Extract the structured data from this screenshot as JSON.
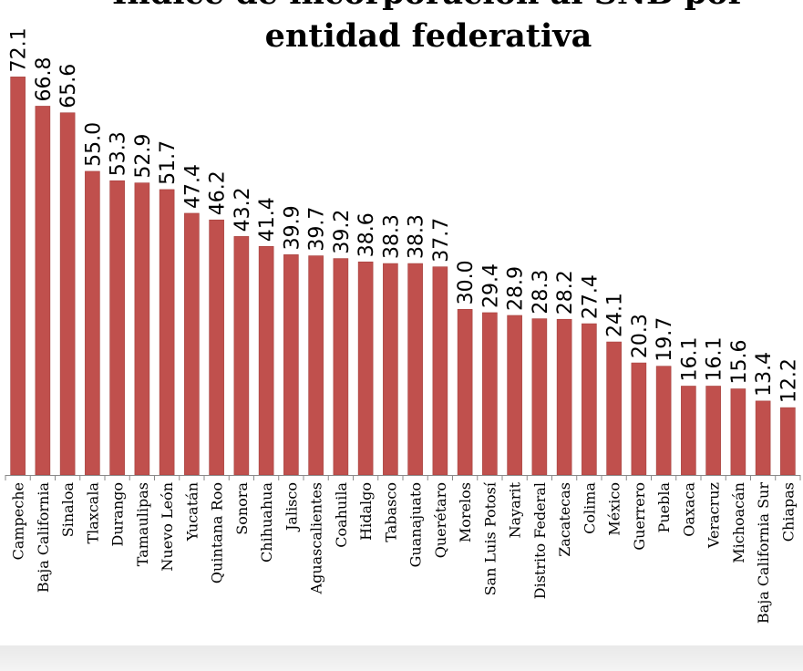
{
  "chart_data": {
    "type": "bar",
    "title": "Índice de incorporación al SNB por entidad federativa",
    "title_lines": [
      "Índice de incorporación al SNB por",
      "entidad federativa"
    ],
    "xlabel": "",
    "ylabel": "",
    "ylim": [
      0,
      80
    ],
    "grid": false,
    "bar_color": "#c0504d",
    "categories": [
      "Campeche",
      "Baja California",
      "Sinaloa",
      "Tlaxcala",
      "Durango",
      "Tamaulipas",
      "Nuevo León",
      "Yucatán",
      "Quintana Roo",
      "Sonora",
      "Chihuahua",
      "Jalisco",
      "Aguascalientes",
      "Coahuila",
      "Hidalgo",
      "Tabasco",
      "Guanajuato",
      "Querétaro",
      "Morelos",
      "San Luis Potosí",
      "Nayarit",
      "Distrito Federal",
      "Zacatecas",
      "Colima",
      "México",
      "Guerrero",
      "Puebla",
      "Oaxaca",
      "Veracruz",
      "Michoacán",
      "Baja California Sur",
      "Chiapas"
    ],
    "values": [
      72.1,
      66.8,
      65.6,
      55.0,
      53.3,
      52.9,
      51.7,
      47.4,
      46.2,
      43.2,
      41.4,
      39.9,
      39.7,
      39.2,
      38.6,
      38.3,
      38.3,
      37.7,
      30.0,
      29.4,
      28.9,
      28.3,
      28.2,
      27.4,
      24.1,
      20.3,
      19.7,
      16.1,
      16.1,
      15.6,
      13.4,
      12.2
    ],
    "value_labels": [
      "72.1",
      "66.8",
      "65.6",
      "55.0",
      "53.3",
      "52.9",
      "51.7",
      "47.4",
      "46.2",
      "43.2",
      "41.4",
      "39.9",
      "39.7",
      "39.2",
      "38.6",
      "38.3",
      "38.3",
      "37.7",
      "30.0",
      "29.4",
      "28.9",
      "28.3",
      "28.2",
      "27.4",
      "24.1",
      "20.3",
      "19.7",
      "16.1",
      "16.1",
      "15.6",
      "13.4",
      "12.2"
    ]
  }
}
